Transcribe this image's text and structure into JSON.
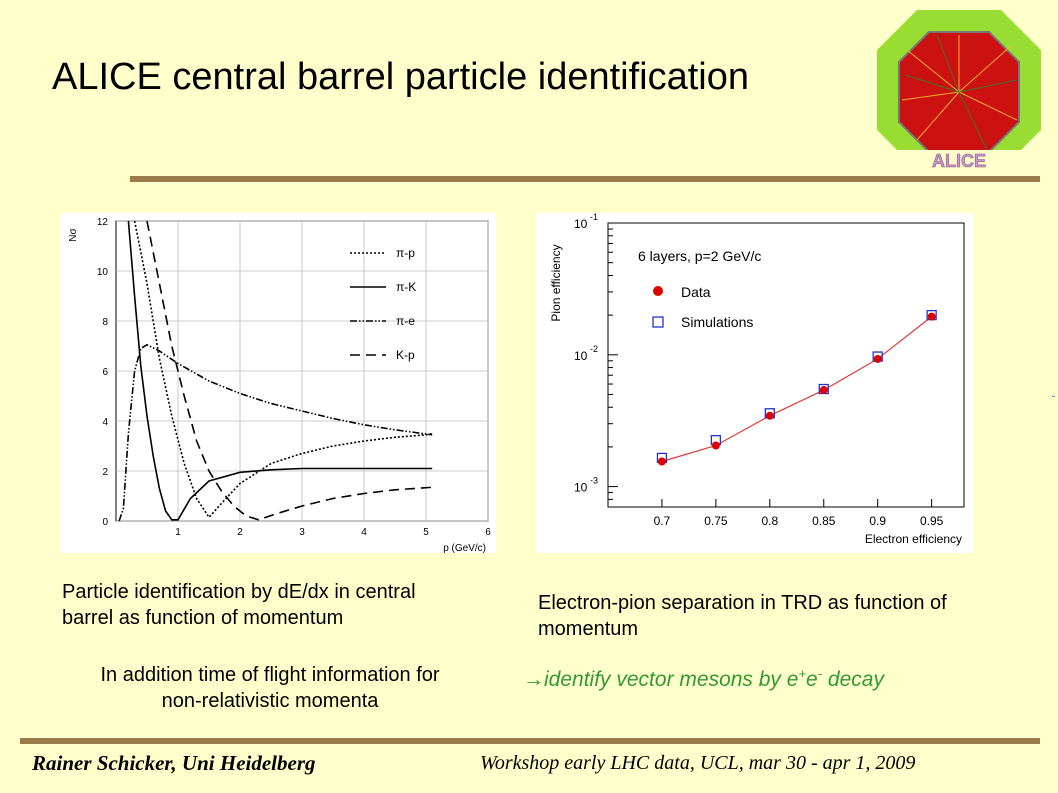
{
  "slide": {
    "title": "ALICE central barrel particle identification",
    "caption_left": "Particle identification  by dE/dx in central barrel as function of momentum",
    "caption_tof": "In addition time of flight information for non-relativistic momenta",
    "caption_right": "Electron-pion separation in TRD as function of momentum",
    "decay_arrow": "→",
    "decay_text": "identify vector mesons by e",
    "decay_sup1": "+",
    "decay_mid": "e",
    "decay_sup2": "-",
    "decay_tail": " decay",
    "footer_left": "Rainer Schicker, Uni Heidelberg",
    "footer_right": "Workshop early LHC data, UCL, mar 30 - apr 1, 2009",
    "logo_text": "ALICE",
    "colors": {
      "background": "#ffffcc",
      "rule": "#9b7b4b",
      "decay_text": "#339933",
      "logo_green": "#99dd33",
      "logo_red": "#cc1111"
    }
  },
  "chart_data": [
    {
      "type": "line",
      "xlabel": "p (GeV/c)",
      "ylabel": "Nσ",
      "xlim": [
        0,
        6
      ],
      "ylim": [
        0,
        12
      ],
      "x_ticks": [
        "1",
        "2",
        "3",
        "4",
        "5",
        "6"
      ],
      "y_ticks": [
        "0",
        "2",
        "4",
        "6",
        "8",
        "10",
        "12"
      ],
      "grid": true,
      "legend_position": "top-right",
      "series": [
        {
          "name": "π-p",
          "style": "dotted",
          "points": [
            [
              0.3,
              12
            ],
            [
              0.5,
              9.5
            ],
            [
              0.7,
              6.5
            ],
            [
              0.9,
              4.2
            ],
            [
              1.1,
              2.3
            ],
            [
              1.3,
              0.9
            ],
            [
              1.5,
              0.15
            ],
            [
              1.7,
              0.7
            ],
            [
              2.0,
              1.5
            ],
            [
              2.5,
              2.3
            ],
            [
              3.0,
              2.7
            ],
            [
              3.5,
              3.0
            ],
            [
              4.0,
              3.2
            ],
            [
              4.5,
              3.35
            ],
            [
              5.0,
              3.45
            ],
            [
              5.1,
              3.5
            ]
          ]
        },
        {
          "name": "π-K",
          "style": "solid",
          "points": [
            [
              0.2,
              12
            ],
            [
              0.3,
              9.0
            ],
            [
              0.4,
              6.2
            ],
            [
              0.5,
              4.2
            ],
            [
              0.6,
              2.6
            ],
            [
              0.7,
              1.3
            ],
            [
              0.8,
              0.4
            ],
            [
              0.9,
              0.05
            ],
            [
              1.0,
              0.05
            ],
            [
              1.2,
              0.9
            ],
            [
              1.5,
              1.6
            ],
            [
              2.0,
              1.95
            ],
            [
              2.5,
              2.05
            ],
            [
              3.0,
              2.1
            ],
            [
              4.0,
              2.1
            ],
            [
              5.1,
              2.1
            ]
          ]
        },
        {
          "name": "π-e",
          "style": "dashdot",
          "points": [
            [
              0.05,
              0
            ],
            [
              0.12,
              0.5
            ],
            [
              0.2,
              3.5
            ],
            [
              0.3,
              6.0
            ],
            [
              0.4,
              6.9
            ],
            [
              0.5,
              7.05
            ],
            [
              0.7,
              6.8
            ],
            [
              1.0,
              6.3
            ],
            [
              1.5,
              5.6
            ],
            [
              2.0,
              5.1
            ],
            [
              2.5,
              4.7
            ],
            [
              3.0,
              4.4
            ],
            [
              3.5,
              4.1
            ],
            [
              4.0,
              3.85
            ],
            [
              4.5,
              3.65
            ],
            [
              5.1,
              3.45
            ]
          ]
        },
        {
          "name": "K-p",
          "style": "dashed",
          "points": [
            [
              0.5,
              12
            ],
            [
              0.7,
              9.5
            ],
            [
              0.9,
              7.0
            ],
            [
              1.1,
              5.0
            ],
            [
              1.3,
              3.2
            ],
            [
              1.5,
              2.0
            ],
            [
              1.7,
              1.2
            ],
            [
              1.9,
              0.6
            ],
            [
              2.1,
              0.2
            ],
            [
              2.3,
              0.05
            ],
            [
              2.6,
              0.3
            ],
            [
              3.0,
              0.6
            ],
            [
              3.5,
              0.9
            ],
            [
              4.0,
              1.1
            ],
            [
              4.5,
              1.25
            ],
            [
              5.1,
              1.35
            ]
          ]
        }
      ]
    },
    {
      "type": "scatter",
      "title": "6 layers, p=2 GeV/c",
      "xlabel": "Electron efficiency",
      "ylabel": "Pion efficiency",
      "xlim": [
        0.65,
        0.98
      ],
      "ylim": [
        0.0007,
        0.1
      ],
      "y_scale": "log",
      "x_ticks": [
        "0.7",
        "0.75",
        "0.8",
        "0.85",
        "0.9",
        "0.95"
      ],
      "y_ticks": [
        {
          "base": "10",
          "exp": "-1"
        },
        {
          "base": "10",
          "exp": "-2"
        },
        {
          "base": "10",
          "exp": "-3"
        }
      ],
      "legend_position": "top-left",
      "series": [
        {
          "name": "Data",
          "marker": "filled-circle",
          "color": "#dd0000",
          "x": [
            0.7,
            0.75,
            0.8,
            0.85,
            0.9,
            0.95
          ],
          "y": [
            0.00155,
            0.00205,
            0.00345,
            0.0054,
            0.0093,
            0.0195
          ]
        },
        {
          "name": "Simulations",
          "marker": "open-square",
          "color": "#2233cc",
          "x": [
            0.7,
            0.75,
            0.8,
            0.85,
            0.9,
            0.95
          ],
          "y": [
            0.00165,
            0.00225,
            0.0036,
            0.0055,
            0.0097,
            0.02
          ]
        }
      ]
    }
  ]
}
